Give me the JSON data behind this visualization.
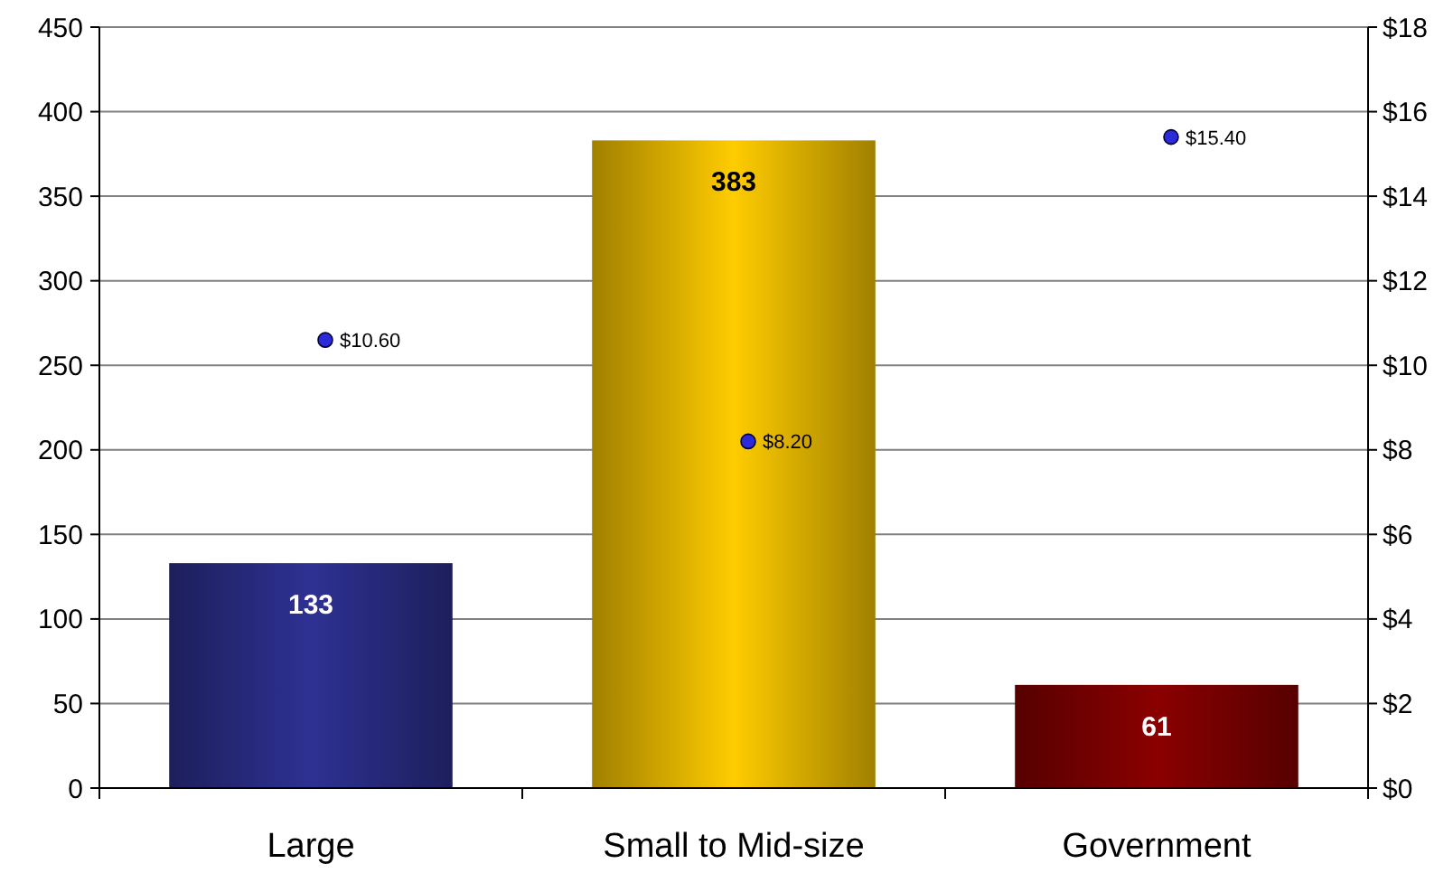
{
  "chart_data": {
    "type": "bar",
    "categories": [
      "Large",
      "Small to Mid-size",
      "Government"
    ],
    "series": [
      {
        "colors": [
          "#2e3192",
          "#ffcc00",
          "#8b0000"
        ],
        "values": [
          133,
          383,
          61
        ],
        "value_labels": [
          "133",
          "383",
          "61"
        ]
      },
      {
        "type": "scatter",
        "axis": "y2",
        "color": "#2b2bd9",
        "values": [
          10.6,
          8.2,
          15.4
        ],
        "value_labels": [
          "$10.60",
          "$8.20",
          "$15.40"
        ]
      }
    ],
    "ylim": [
      0,
      450
    ],
    "yticks": [
      0,
      50,
      100,
      150,
      200,
      250,
      300,
      350,
      400,
      450
    ],
    "y2lim": [
      0,
      18
    ],
    "y2ticks": [
      {
        "value": 0,
        "label": "$0"
      },
      {
        "value": 2,
        "label": "$2"
      },
      {
        "value": 4,
        "label": "$4"
      },
      {
        "value": 6,
        "label": "$6"
      },
      {
        "value": 8,
        "label": "$8"
      },
      {
        "value": 10,
        "label": "$10"
      },
      {
        "value": 12,
        "label": "$12"
      },
      {
        "value": 14,
        "label": "$14"
      },
      {
        "value": 16,
        "label": "$16"
      },
      {
        "value": 18,
        "label": "$18"
      }
    ],
    "grid": "y",
    "marker": "circle"
  }
}
